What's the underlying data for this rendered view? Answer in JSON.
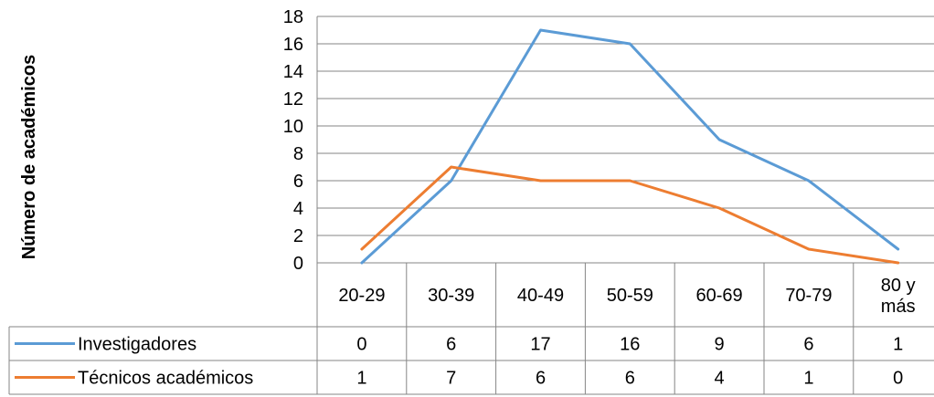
{
  "chart_data": {
    "type": "line",
    "ylabel": "Número de académicos",
    "xlabel": "",
    "title": "",
    "ylim": [
      0,
      18
    ],
    "yticks": [
      0,
      2,
      4,
      6,
      8,
      10,
      12,
      14,
      16,
      18
    ],
    "categories": [
      "20-29",
      "30-39",
      "40-49",
      "50-59",
      "60-69",
      "70-79",
      "80 y más"
    ],
    "grid": true,
    "legend": "data-table",
    "series": [
      {
        "name": "Investigadores",
        "color": "#5B9BD5",
        "values": [
          0,
          6,
          17,
          16,
          9,
          6,
          1
        ]
      },
      {
        "name": "Técnicos académicos",
        "color": "#ED7D31",
        "values": [
          1,
          7,
          6,
          6,
          4,
          1,
          0
        ]
      }
    ]
  }
}
